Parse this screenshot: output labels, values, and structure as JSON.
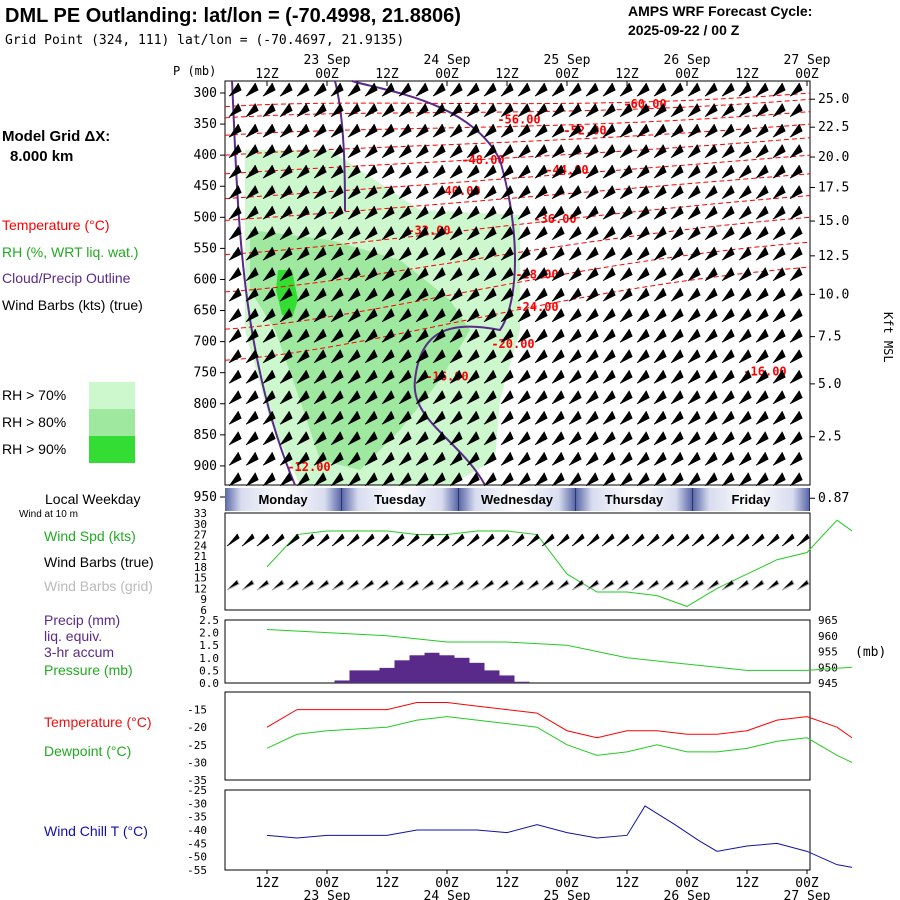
{
  "header": {
    "title": "DML PE Outlanding:  lat/lon = (-70.4998, 21.8806)",
    "subtitle": "Grid Point (324, 111) lat/lon = (-70.4697, 21.9135)",
    "cycle_line1": "AMPS WRF Forecast Cycle:",
    "cycle_line2": "2025-09-22 / 00  Z"
  },
  "left_panel": {
    "grid_label": "Model Grid ΔX:",
    "grid_value": "8.000 km",
    "temperature": "Temperature (°C)",
    "rh": "RH (%, WRT liq. wat.)",
    "cloud": "Cloud/Precip Outline",
    "wind_barbs": "Wind Barbs (kts) (true)",
    "rh_legend": [
      {
        "label": "RH > 70%",
        "color": "#cdf7cd"
      },
      {
        "label": "RH > 80%",
        "color": "#9fe89f"
      },
      {
        "label": "RH > 90%",
        "color": "#33dd33"
      }
    ],
    "local_weekday": "Local Weekday",
    "wind_at": "Wind at 10 m",
    "wind_spd": "Wind Spd (kts)",
    "wind_barbs_true": "Wind Barbs (true)",
    "wind_barbs_grid": "Wind Barbs (grid)",
    "precip1": "Precip (mm)",
    "precip2": "liq. equiv.",
    "precip3": "3-hr accum",
    "pressure": "Pressure (mb)",
    "temp2": "Temperature (°C)",
    "dewpoint": "Dewpoint (°C)",
    "windchill": "Wind Chill T (°C)"
  },
  "colors": {
    "temp": "#ff0000",
    "green": "#22cc22",
    "purple": "#5a2a8a",
    "blue": "#1010aa",
    "gray": "#aaaaaa"
  },
  "days": [
    "Monday",
    "Tuesday",
    "Wednesday",
    "Thursday",
    "Friday"
  ],
  "chart_data": [
    {
      "type": "cross-section",
      "title": "Vertical cross-section (temperature contours, RH shading, wind barbs)",
      "ylabel": "P (mb)",
      "ylabel_right": "Kft MSL",
      "x_ticks": [
        "12Z",
        "00Z",
        "12Z",
        "00Z",
        "12Z",
        "00Z",
        "12Z",
        "00Z",
        "12Z",
        "00Z"
      ],
      "date_ticks": [
        "23 Sep",
        "24 Sep",
        "25 Sep",
        "26 Sep",
        "27 Sep"
      ],
      "date_tick_index": [
        1,
        3,
        5,
        7,
        9
      ],
      "ylim": [
        300,
        950
      ],
      "y_ticks": [
        300,
        350,
        400,
        450,
        500,
        550,
        600,
        650,
        700,
        750,
        800,
        850,
        900,
        950
      ],
      "right_ticks": [
        {
          "label": "25.0",
          "p": 310
        },
        {
          "label": "22.5",
          "p": 355
        },
        {
          "label": "20.0",
          "p": 403
        },
        {
          "label": "17.5",
          "p": 452
        },
        {
          "label": "15.0",
          "p": 506
        },
        {
          "label": "12.5",
          "p": 562
        },
        {
          "label": "10.0",
          "p": 624
        },
        {
          "label": "7.5",
          "p": 692
        },
        {
          "label": "5.0",
          "p": 768
        },
        {
          "label": "2.5",
          "p": 853
        },
        {
          "label": "0.87",
          "p": 952
        }
      ],
      "temp_labels": [
        {
          "label": "-60.00",
          "x": 6.3,
          "p": 318
        },
        {
          "label": "-56.00",
          "x": 4.2,
          "p": 343
        },
        {
          "label": "-52.00",
          "x": 5.3,
          "p": 360
        },
        {
          "label": "-48.00",
          "x": 3.6,
          "p": 408
        },
        {
          "label": "-44.00",
          "x": 5.0,
          "p": 424
        },
        {
          "label": "-40.00",
          "x": 3.2,
          "p": 458
        },
        {
          "label": "-36.00",
          "x": 4.8,
          "p": 503
        },
        {
          "label": "-32.00",
          "x": 2.7,
          "p": 521
        },
        {
          "label": "-28.00",
          "x": 4.5,
          "p": 592
        },
        {
          "label": "-24.00",
          "x": 4.5,
          "p": 644
        },
        {
          "label": "-20.00",
          "x": 4.1,
          "p": 704
        },
        {
          "label": "-16.00",
          "x": 3.0,
          "p": 756
        },
        {
          "label": "-16.00",
          "x": 8.3,
          "p": 748
        },
        {
          "label": "-12.00",
          "x": 0.7,
          "p": 902
        }
      ]
    },
    {
      "type": "line",
      "title": "Wind Spd (kts)",
      "yticks": [
        6,
        9,
        12,
        15,
        18,
        21,
        24,
        27,
        30,
        33
      ],
      "ylim": [
        6,
        33
      ],
      "x": [
        0,
        0.5,
        1,
        1.5,
        2,
        2.5,
        3,
        3.5,
        4,
        4.5,
        5,
        5.5,
        6,
        6.5,
        7,
        7.5,
        8,
        8.5,
        9,
        9.5,
        9.75
      ],
      "values": [
        18,
        27,
        28,
        28,
        28,
        27,
        27,
        28,
        28,
        27,
        16,
        11,
        11,
        10,
        7,
        12,
        16,
        20,
        22,
        31,
        28
      ]
    },
    {
      "type": "bar+line",
      "title": "Precip (mm) / Pressure (mb)",
      "yticks_left": [
        0.0,
        0.5,
        1.0,
        1.5,
        2.0,
        2.5
      ],
      "ylim_left": [
        0,
        2.5
      ],
      "yticks_right": [
        945,
        950,
        955,
        960,
        965
      ],
      "ylim_right": [
        945,
        965
      ],
      "precip_x": [
        1.25,
        1.5,
        1.75,
        2.0,
        2.25,
        2.5,
        2.75,
        3.0,
        3.25,
        3.5,
        3.75,
        4.0,
        4.25
      ],
      "precip_values": [
        0.1,
        0.5,
        0.5,
        0.6,
        0.9,
        1.1,
        1.2,
        1.1,
        1.0,
        0.8,
        0.5,
        0.3,
        0.05
      ],
      "pressure_x": [
        0,
        1,
        2,
        3,
        4,
        5,
        6,
        7,
        8,
        9,
        9.75
      ],
      "pressure_values": [
        962,
        961,
        960,
        958,
        958,
        957,
        953,
        951,
        949,
        949,
        950
      ]
    },
    {
      "type": "line",
      "title": "Temperature / Dewpoint (°C)",
      "yticks": [
        -35,
        -30,
        -25,
        -20,
        -15
      ],
      "ylim": [
        -35,
        -10
      ],
      "series": [
        {
          "name": "Temperature",
          "x": [
            0,
            0.5,
            1,
            2,
            2.5,
            3,
            3.5,
            4,
            4.5,
            5,
            5.5,
            6,
            6.5,
            7,
            7.5,
            8,
            8.5,
            9,
            9.5,
            9.75
          ],
          "values": [
            -20,
            -15,
            -15,
            -15,
            -13,
            -13,
            -14,
            -15,
            -16,
            -21,
            -23,
            -21,
            -21,
            -22,
            -22,
            -21,
            -18,
            -17,
            -20,
            -23
          ]
        },
        {
          "name": "Dewpoint",
          "x": [
            0,
            0.5,
            1,
            2,
            2.5,
            3,
            3.5,
            4,
            4.5,
            5,
            5.5,
            6,
            6.5,
            7,
            7.5,
            8,
            8.5,
            9,
            9.5,
            9.75
          ],
          "values": [
            -26,
            -22,
            -21,
            -20,
            -18,
            -17,
            -18,
            -19,
            -20,
            -25,
            -28,
            -27,
            -25,
            -27,
            -27,
            -26,
            -24,
            -23,
            -28,
            -30
          ]
        }
      ]
    },
    {
      "type": "line",
      "title": "Wind Chill T (°C)",
      "yticks": [
        -55,
        -50,
        -45,
        -40,
        -35,
        -30,
        -25
      ],
      "ylim": [
        -55,
        -25
      ],
      "x": [
        0,
        0.5,
        1,
        1.5,
        2,
        2.5,
        3,
        3.5,
        4,
        4.5,
        5,
        5.5,
        6,
        6.3,
        6.8,
        7.2,
        7.5,
        8,
        8.5,
        9,
        9.5,
        9.75
      ],
      "values": [
        -42,
        -43,
        -42,
        -42,
        -42,
        -40,
        -40,
        -40,
        -41,
        -38,
        -41,
        -43,
        -42,
        -31,
        -38,
        -44,
        -48,
        -46,
        -45,
        -48,
        -53,
        -54
      ]
    }
  ]
}
